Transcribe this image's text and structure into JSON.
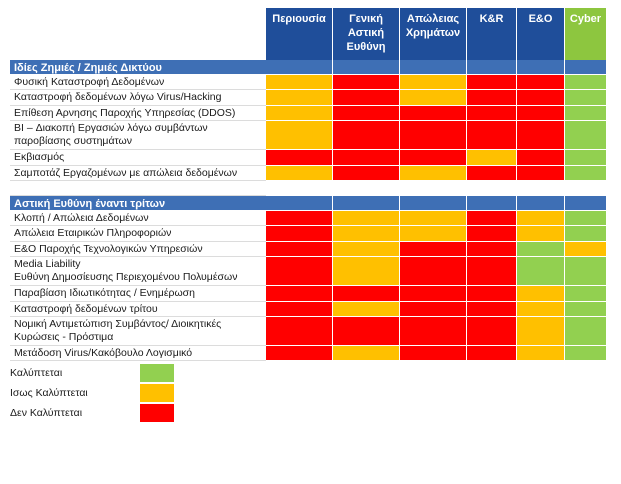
{
  "colors": {
    "header_blue": "#1f4e9a",
    "section_blue": "#3e6fb5",
    "blank_blue": "#3e6fb5",
    "cyber_header": "#8dc63f",
    "covered": "#92d050",
    "maybe": "#ffc000",
    "not_covered": "#ff0000",
    "row_blank": "#ffffff"
  },
  "columns": [
    {
      "key": "property",
      "label": [
        "Περιουσία"
      ]
    },
    {
      "key": "liability",
      "label": [
        "Γενική",
        "Αστική",
        "Ευθύνη"
      ]
    },
    {
      "key": "money",
      "label": [
        "Απώλειας",
        "Χρημάτων"
      ]
    },
    {
      "key": "kr",
      "label": [
        "K&R"
      ]
    },
    {
      "key": "eo",
      "label": [
        "E&O"
      ]
    },
    {
      "key": "cyber",
      "label": [
        "Cyber"
      ]
    }
  ],
  "sections": [
    {
      "title": "Ιδίες Ζημιές / Ζημιές Δικτύου",
      "rows": [
        {
          "label": [
            "Φυσική Καταστροφή Δεδομένων"
          ],
          "cells": [
            "Y",
            "R",
            "Y",
            "R",
            "R",
            "G"
          ]
        },
        {
          "label": [
            "Καταστροφή δεδομένων λόγω Virus/Hacking"
          ],
          "cells": [
            "Y",
            "R",
            "Y",
            "R",
            "R",
            "G"
          ]
        },
        {
          "label": [
            "Επίθεση Αρνησης Παροχής Υπηρεσίας (DDOS)"
          ],
          "cells": [
            "Y",
            "R",
            "R",
            "R",
            "R",
            "G"
          ]
        },
        {
          "label": [
            "BI – Διακοπή Εργασιών λόγω συμβάντων",
            "παροβίασης συστημάτων"
          ],
          "cells": [
            "Y",
            "R",
            "R",
            "R",
            "R",
            "G"
          ]
        },
        {
          "label": [
            "Εκβιασμός"
          ],
          "cells": [
            "R",
            "R",
            "R",
            "Y",
            "R",
            "G"
          ]
        },
        {
          "label": [
            "Σαμποτάζ Εργαζομένων με απώλεια δεδομένων"
          ],
          "cells": [
            "Y",
            "R",
            "Y",
            "R",
            "R",
            "G"
          ]
        }
      ]
    },
    {
      "title": "Αστική Ευθύνη έναντι τρίτων",
      "rows": [
        {
          "label": [
            "Κλοπή / Απώλεια Δεδομένων"
          ],
          "cells": [
            "R",
            "Y",
            "Y",
            "R",
            "Y",
            "G"
          ]
        },
        {
          "label": [
            "Απώλεια Εταιρικών Πληροφοριών"
          ],
          "cells": [
            "R",
            "Y",
            "Y",
            "R",
            "Y",
            "G"
          ]
        },
        {
          "label": [
            "E&O Παροχής Τεχνολογικών Υπηρεσιών"
          ],
          "cells": [
            "R",
            "Y",
            "R",
            "R",
            "G",
            "Y"
          ]
        },
        {
          "label": [
            "Media Liability",
            "Ευθύνη Δημοσίευσης Περιεχομένου Πολυμέσων"
          ],
          "cells": [
            "R",
            "Y",
            "R",
            "R",
            "G",
            "G"
          ]
        },
        {
          "label": [
            "Παραβίαση Ιδιωτικότητας / Ενημέρωση"
          ],
          "cells": [
            "R",
            "R",
            "R",
            "R",
            "Y",
            "G"
          ]
        },
        {
          "label": [
            "Καταστροφή δεδομένων τρίτου"
          ],
          "cells": [
            "R",
            "Y",
            "R",
            "R",
            "Y",
            "G"
          ]
        },
        {
          "label": [
            "Νομική Αντιμετώπιση Συμβάντος/ Διοικητικές",
            "Κυρώσεις - Πρόστιμα"
          ],
          "cells": [
            "R",
            "R",
            "R",
            "R",
            "Y",
            "G"
          ]
        },
        {
          "label": [
            "Μετάδοση Virus/Κακόβουλο Λογισμικό"
          ],
          "cells": [
            "R",
            "Y",
            "R",
            "R",
            "Y",
            "G"
          ]
        }
      ]
    }
  ],
  "legend": [
    {
      "code": "G",
      "label": "Καλύπτεται"
    },
    {
      "code": "Y",
      "label": "Ισως Καλύπτεται"
    },
    {
      "code": "R",
      "label": "Δεν Καλύπτεται"
    }
  ]
}
